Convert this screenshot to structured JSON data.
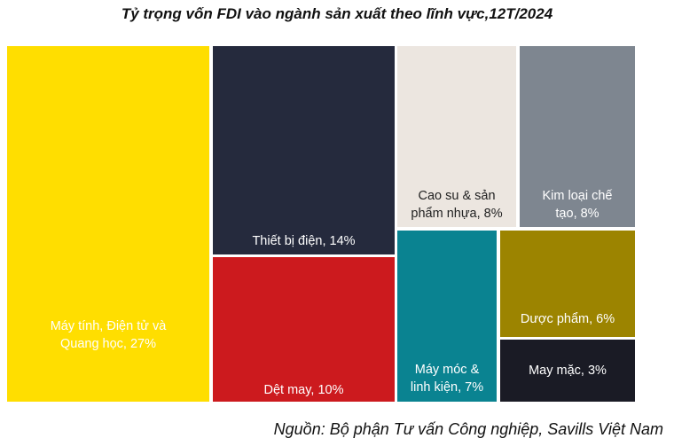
{
  "chart_data": {
    "type": "treemap",
    "title": "Tỷ trọng vốn FDI vào ngành sản xuất theo lĩnh vực,12T/2024",
    "tiles": [
      {
        "label": "Máy tính, Điện tử và Quang học, 27%",
        "value": 27,
        "color": "#FFDE00",
        "text_color": "#ffffff"
      },
      {
        "label": "Thiết bị điện, 14%",
        "value": 14,
        "color": "#252A3D",
        "text_color": "#ffffff"
      },
      {
        "label": "Dệt may, 10%",
        "value": 10,
        "color": "#CC1A1E",
        "text_color": "#ffffff"
      },
      {
        "label": "Cao su & sản phẩm nhựa, 8%",
        "value": 8,
        "color": "#ECE6E0",
        "text_color": "#222222"
      },
      {
        "label": "Kim loại chế tạo, 8%",
        "value": 8,
        "color": "#7E8690",
        "text_color": "#ffffff"
      },
      {
        "label": "Máy móc & linh kiện, 7%",
        "value": 7,
        "color": "#0A8391",
        "text_color": "#ffffff"
      },
      {
        "label": "Dược phẩm, 6%",
        "value": 6,
        "color": "#9C8400",
        "text_color": "#ffffff"
      },
      {
        "label": "May mặc, 3%",
        "value": 3,
        "color": "#1A1B25",
        "text_color": "#ffffff"
      }
    ]
  },
  "source": "Nguồn: Bộ phận Tư vấn Công nghiệp, Savills Việt Nam"
}
